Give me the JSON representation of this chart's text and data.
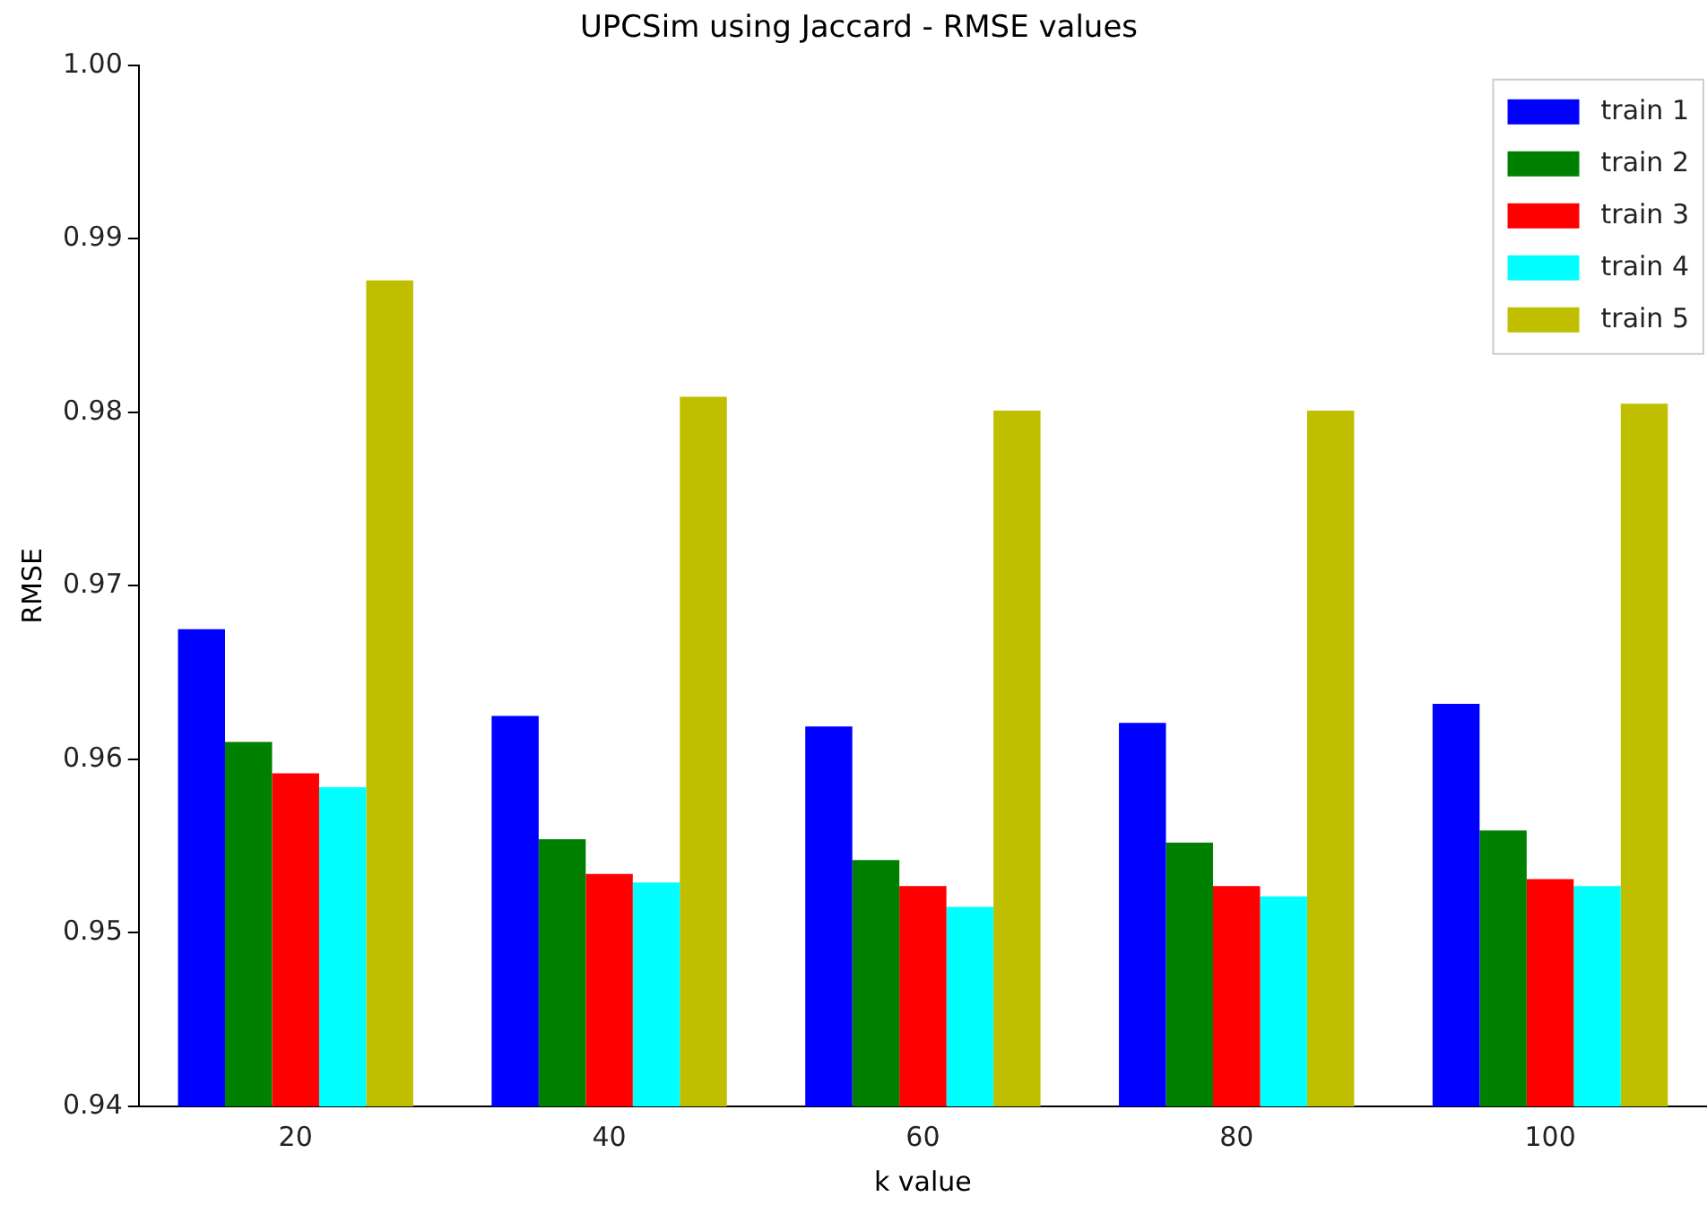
{
  "chart_data": {
    "type": "bar",
    "title": "UPCSim using Jaccard - RMSE values",
    "xlabel": "k value",
    "ylabel": "RMSE",
    "categories": [
      "20",
      "40",
      "60",
      "80",
      "100"
    ],
    "series": [
      {
        "name": "train 1",
        "color": "#0000ff",
        "values": [
          0.9675,
          0.9625,
          0.9619,
          0.9621,
          0.9632
        ]
      },
      {
        "name": "train 2",
        "color": "#008000",
        "values": [
          0.961,
          0.9554,
          0.9542,
          0.9552,
          0.9559
        ]
      },
      {
        "name": "train 3",
        "color": "#ff0000",
        "values": [
          0.9592,
          0.9534,
          0.9527,
          0.9527,
          0.9531
        ]
      },
      {
        "name": "train 4",
        "color": "#00ffff",
        "values": [
          0.9584,
          0.9529,
          0.9515,
          0.9521,
          0.9527
        ]
      },
      {
        "name": "train 5",
        "color": "#bfbf00",
        "values": [
          0.9876,
          0.9809,
          0.9801,
          0.9801,
          0.9805
        ]
      }
    ],
    "ylim": [
      0.94,
      1.0
    ],
    "yticks": [
      0.94,
      0.95,
      0.96,
      0.97,
      0.98,
      0.99,
      {
        "value": 1.0,
        "label": "1.00"
      }
    ],
    "grid": false,
    "legend": "top right"
  }
}
